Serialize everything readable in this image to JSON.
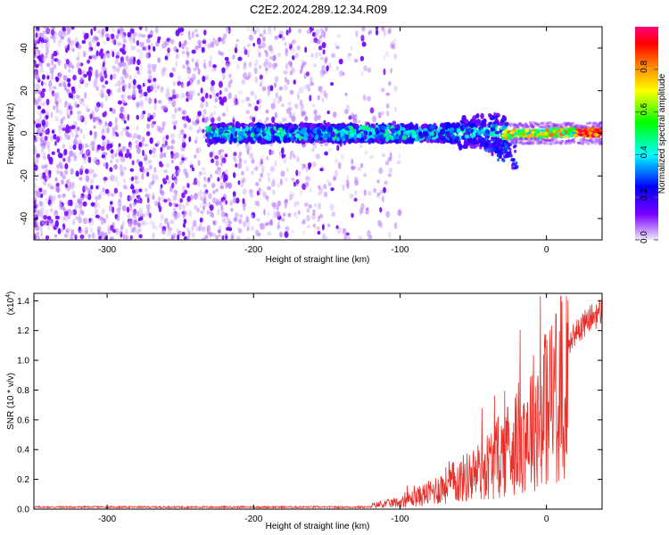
{
  "title": "C2E2.2024.289.12.34.R09",
  "chart_data": [
    {
      "type": "heatmap",
      "xlabel": "Height of straight line (km)",
      "ylabel": "Frequency (Hz)",
      "xlim": [
        -350,
        38
      ],
      "ylim": [
        -50,
        50
      ],
      "x_ticks": [
        -300,
        -200,
        -100,
        0
      ],
      "y_ticks": [
        -40,
        -20,
        0,
        20,
        40
      ],
      "colorbar": {
        "label": "Normalized spectral amplitude",
        "range": [
          0.0,
          1.0
        ],
        "ticks": [
          0.0,
          0.2,
          0.4,
          0.6,
          0.8
        ],
        "colormap": [
          "#e8e0f8",
          "#7a00ff",
          "#0000ff",
          "#00ffff",
          "#00ff00",
          "#ffff00",
          "#ff8000",
          "#ff0000",
          "#ff0080"
        ]
      },
      "description_regions": [
        {
          "x_range": [
            -350,
            -145
          ],
          "y_range": [
            -50,
            50
          ],
          "level": "scattered low amplitude"
        },
        {
          "x_range": [
            -230,
            -30
          ],
          "y_range": [
            -8,
            8
          ],
          "level": "medium amplitude band"
        },
        {
          "x_range": [
            -30,
            38
          ],
          "y_range": [
            -2,
            2
          ],
          "level": "high amplitude band"
        }
      ]
    },
    {
      "type": "line",
      "xlabel": "Height of straight line (km)",
      "ylabel": "SNR (10 * v/v)",
      "multiplier_label": "(x10",
      "multiplier_exp": "4",
      "xlim": [
        -350,
        38
      ],
      "ylim": [
        0,
        1.45
      ],
      "x_ticks": [
        -300,
        -200,
        -100,
        0
      ],
      "y_ticks": [
        "0.0",
        "0.2",
        "0.4",
        "0.6",
        "0.8",
        "1.0",
        "1.2",
        "1.4"
      ],
      "series": [
        {
          "color": "#e8302a",
          "x": [
            -350,
            -300,
            -250,
            -200,
            -150,
            -120,
            -100,
            -90,
            -80,
            -70,
            -60,
            -50,
            -40,
            -30,
            -20,
            -10,
            0,
            10,
            20,
            30,
            38
          ],
          "y": [
            0.01,
            0.01,
            0.012,
            0.012,
            0.015,
            0.03,
            0.06,
            0.1,
            0.14,
            0.2,
            0.25,
            0.3,
            0.38,
            0.48,
            0.6,
            0.75,
            0.9,
            1.1,
            1.25,
            1.35,
            1.4
          ]
        }
      ]
    }
  ]
}
